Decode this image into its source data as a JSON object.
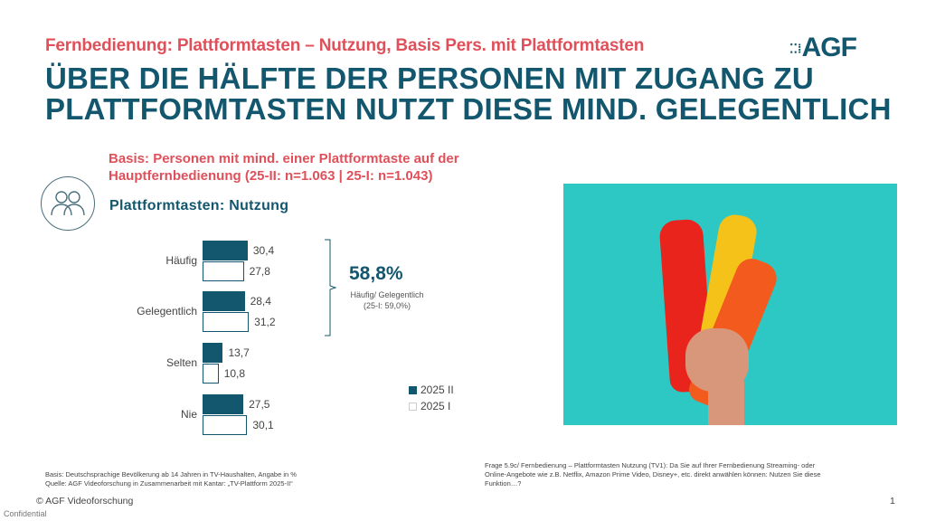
{
  "header": {
    "subtitle": "Fernbedienung: Plattformtasten – Nutzung, Basis Pers. mit Plattformtasten",
    "title_line1": "ÜBER DIE HÄLFTE DER PERSONEN MIT ZUGANG ZU",
    "title_line2": "PLATTFORMTASTEN NUTZT DIESE MIND. GELEGENTLICH",
    "logo": "AGF"
  },
  "basis": {
    "line1": "Basis: Personen mit mind. einer Plattformtaste auf der",
    "line2": "Hauptfernbedienung (25-II: n=1.063 | 25-I: n=1.043)"
  },
  "colors": {
    "accent": "#13576e",
    "highlight": "#e0505a",
    "photo_bg": "#2ec8c4"
  },
  "chart_data": {
    "type": "bar",
    "orientation": "horizontal",
    "title": "Plattformtasten: Nutzung",
    "categories": [
      "Häufig",
      "Gelegentlich",
      "Selten",
      "Nie"
    ],
    "series": [
      {
        "name": "2025 II",
        "values": [
          30.4,
          28.4,
          13.7,
          27.5
        ],
        "labels": [
          "30,4",
          "28,4",
          "13,7",
          "27,5"
        ],
        "color": "#13576e"
      },
      {
        "name": "2025 I",
        "values": [
          27.8,
          31.2,
          10.8,
          30.1
        ],
        "labels": [
          "27,8",
          "31,2",
          "10,8",
          "30,1"
        ],
        "color": "#ffffff"
      }
    ],
    "annotation": {
      "value": "58,8%",
      "label": "Häufig/ Gelegentlich",
      "comparison": "(25-I: 59,0%)"
    },
    "legend": "bottom-right"
  },
  "footer": {
    "basis": "Basis: Deutschsprachige Bevölkerung ab 14 Jahren in TV-Haushalten, Angabe in %",
    "source": "Quelle: AGF Videoforschung in Zusammenarbeit mit Kantar: „TV-Plattform 2025-II“",
    "question_l1": "Frage 5.9c/ Fernbedienung – Plattformtasten Nutzung (TV1): Da Sie auf Ihrer Fernbedienung Streaming- oder",
    "question_l2": "Online-Angebote wie z.B. Netflix, Amazon Prime Video, Disney+, etc. direkt anwählen können: Nutzen Sie diese",
    "question_l3": "Funktion…?",
    "copyright": "© AGF Videoforschung",
    "confidential": "Confidential",
    "page": "1"
  }
}
